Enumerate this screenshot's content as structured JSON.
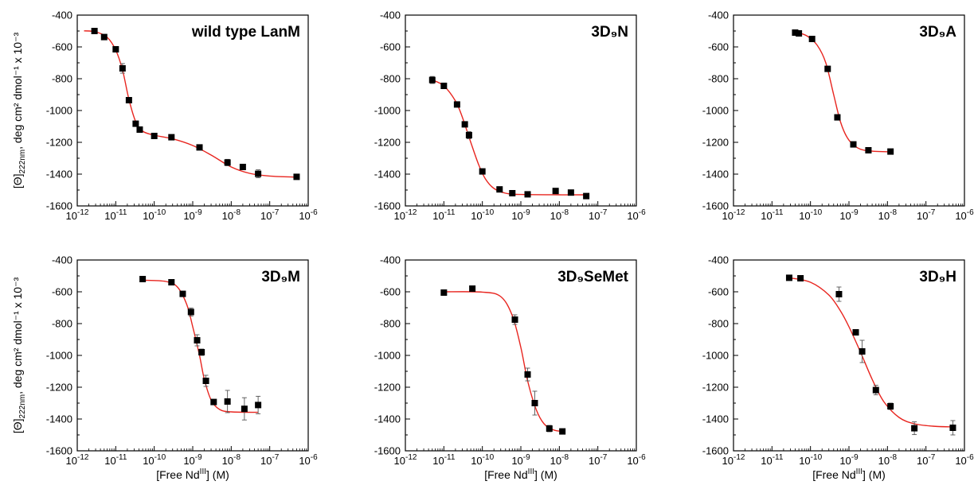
{
  "figure": {
    "ylabel_main": "[Θ]",
    "ylabel_sub": "222nm",
    "ylabel_rest": ", deg cm² dmol⁻¹ x 10⁻³",
    "xlabel_main": "[Free Nd",
    "xlabel_sup": "III",
    "xlabel_rest": "] (M)"
  },
  "chart_data": [
    {
      "type": "scatter",
      "title": "wild type LanM",
      "x_scale": "log",
      "xlim": [
        1e-12,
        1e-06
      ],
      "ylim": [
        -1600,
        -400
      ],
      "x_ticks": [
        "10⁻¹²",
        "10⁻¹¹",
        "10⁻¹⁰",
        "10⁻⁹",
        "10⁻⁸",
        "10⁻⁷",
        "10⁻⁶"
      ],
      "y_ticks": [
        -400,
        -600,
        -800,
        -1000,
        -1200,
        -1400,
        -1600
      ],
      "show_xlabel": false,
      "show_ylabel": true,
      "marker_color": "#000000",
      "fit_color": "#e8251f",
      "points": [
        {
          "x": 2.8e-12,
          "y": -500,
          "err": 8
        },
        {
          "x": 5e-12,
          "y": -538,
          "err": 8
        },
        {
          "x": 1e-11,
          "y": -615,
          "err": 15
        },
        {
          "x": 1.5e-11,
          "y": -735,
          "err": 30
        },
        {
          "x": 2.2e-11,
          "y": -935,
          "err": 10
        },
        {
          "x": 3.3e-11,
          "y": -1083,
          "err": 10
        },
        {
          "x": 4.2e-11,
          "y": -1120,
          "err": 12
        },
        {
          "x": 1e-10,
          "y": -1160,
          "err": 8
        },
        {
          "x": 2.8e-10,
          "y": -1168,
          "err": 8
        },
        {
          "x": 1.5e-09,
          "y": -1232,
          "err": 12
        },
        {
          "x": 8e-09,
          "y": -1327,
          "err": 20
        },
        {
          "x": 2e-08,
          "y": -1355,
          "err": 8
        },
        {
          "x": 5e-08,
          "y": -1398,
          "err": 25
        },
        {
          "x": 5e-07,
          "y": -1417,
          "err": 8
        }
      ],
      "fit": [
        {
          "x": 1.5e-12,
          "y": -499
        },
        {
          "x": 3e-12,
          "y": -505
        },
        {
          "x": 6e-12,
          "y": -540
        },
        {
          "x": 1e-11,
          "y": -620
        },
        {
          "x": 1.5e-11,
          "y": -745
        },
        {
          "x": 2.2e-11,
          "y": -930
        },
        {
          "x": 3.3e-11,
          "y": -1070
        },
        {
          "x": 5e-11,
          "y": -1130
        },
        {
          "x": 1e-10,
          "y": -1155
        },
        {
          "x": 3e-10,
          "y": -1178
        },
        {
          "x": 1e-09,
          "y": -1220
        },
        {
          "x": 3e-09,
          "y": -1280
        },
        {
          "x": 1e-08,
          "y": -1355
        },
        {
          "x": 3e-08,
          "y": -1395
        },
        {
          "x": 1e-07,
          "y": -1412
        },
        {
          "x": 5e-07,
          "y": -1419
        }
      ]
    },
    {
      "type": "scatter",
      "title": "3D₉N",
      "x_scale": "log",
      "xlim": [
        1e-12,
        1e-06
      ],
      "ylim": [
        -1600,
        -400
      ],
      "x_ticks": [
        "10⁻¹²",
        "10⁻¹¹",
        "10⁻¹⁰",
        "10⁻⁹",
        "10⁻⁸",
        "10⁻⁷",
        "10⁻⁶"
      ],
      "y_ticks": [
        -400,
        -600,
        -800,
        -1000,
        -1200,
        -1400,
        -1600
      ],
      "show_xlabel": false,
      "show_ylabel": false,
      "marker_color": "#000000",
      "fit_color": "#e8251f",
      "points": [
        {
          "x": 5e-12,
          "y": -808,
          "err": 22
        },
        {
          "x": 1e-11,
          "y": -845,
          "err": 18
        },
        {
          "x": 2.2e-11,
          "y": -962,
          "err": 10
        },
        {
          "x": 3.5e-11,
          "y": -1087,
          "err": 15
        },
        {
          "x": 4.5e-11,
          "y": -1155,
          "err": 22
        },
        {
          "x": 1e-10,
          "y": -1383,
          "err": 10
        },
        {
          "x": 2.8e-10,
          "y": -1496,
          "err": 8
        },
        {
          "x": 6e-10,
          "y": -1520,
          "err": 8
        },
        {
          "x": 1.5e-09,
          "y": -1527,
          "err": 8
        },
        {
          "x": 8e-09,
          "y": -1506,
          "err": 12
        },
        {
          "x": 2e-08,
          "y": -1516,
          "err": 12
        },
        {
          "x": 5e-08,
          "y": -1538,
          "err": 8
        }
      ],
      "fit": [
        {
          "x": 5e-12,
          "y": -808
        },
        {
          "x": 1e-11,
          "y": -845
        },
        {
          "x": 2e-11,
          "y": -940
        },
        {
          "x": 3e-11,
          "y": -1040
        },
        {
          "x": 5e-11,
          "y": -1200
        },
        {
          "x": 8e-11,
          "y": -1340
        },
        {
          "x": 1.2e-10,
          "y": -1430
        },
        {
          "x": 2e-10,
          "y": -1490
        },
        {
          "x": 4e-10,
          "y": -1520
        },
        {
          "x": 1e-09,
          "y": -1528
        },
        {
          "x": 1e-08,
          "y": -1530
        },
        {
          "x": 5e-08,
          "y": -1530
        }
      ]
    },
    {
      "type": "scatter",
      "title": "3D₉A",
      "x_scale": "log",
      "xlim": [
        1e-12,
        1e-06
      ],
      "ylim": [
        -1600,
        -400
      ],
      "x_ticks": [
        "10⁻¹²",
        "10⁻¹¹",
        "10⁻¹⁰",
        "10⁻⁹",
        "10⁻⁸",
        "10⁻⁷",
        "10⁻⁶"
      ],
      "y_ticks": [
        -400,
        -600,
        -800,
        -1000,
        -1200,
        -1400,
        -1600
      ],
      "show_xlabel": false,
      "show_ylabel": false,
      "marker_color": "#000000",
      "fit_color": "#e8251f",
      "points": [
        {
          "x": 4e-11,
          "y": -510,
          "err": 8
        },
        {
          "x": 5e-11,
          "y": -515,
          "err": 8
        },
        {
          "x": 1.1e-10,
          "y": -550,
          "err": 8
        },
        {
          "x": 2.8e-10,
          "y": -738,
          "err": 15
        },
        {
          "x": 5e-10,
          "y": -1043,
          "err": 10
        },
        {
          "x": 1.3e-09,
          "y": -1213,
          "err": 10
        },
        {
          "x": 3.2e-09,
          "y": -1250,
          "err": 12
        },
        {
          "x": 1.2e-08,
          "y": -1258,
          "err": 15
        }
      ],
      "fit": [
        {
          "x": 4e-11,
          "y": -505
        },
        {
          "x": 8e-11,
          "y": -530
        },
        {
          "x": 1.5e-10,
          "y": -590
        },
        {
          "x": 2.5e-10,
          "y": -700
        },
        {
          "x": 4e-10,
          "y": -900
        },
        {
          "x": 6e-10,
          "y": -1070
        },
        {
          "x": 9e-10,
          "y": -1170
        },
        {
          "x": 1.5e-09,
          "y": -1228
        },
        {
          "x": 3e-09,
          "y": -1253
        },
        {
          "x": 1.2e-08,
          "y": -1260
        }
      ]
    },
    {
      "type": "scatter",
      "title": "3D₉M",
      "x_scale": "log",
      "xlim": [
        1e-12,
        1e-06
      ],
      "ylim": [
        -1600,
        -400
      ],
      "x_ticks": [
        "10⁻¹²",
        "10⁻¹¹",
        "10⁻¹⁰",
        "10⁻⁹",
        "10⁻⁸",
        "10⁻⁷",
        "10⁻⁶"
      ],
      "y_ticks": [
        -400,
        -600,
        -800,
        -1000,
        -1200,
        -1400,
        -1600
      ],
      "show_xlabel": true,
      "show_ylabel": true,
      "marker_color": "#000000",
      "fit_color": "#e8251f",
      "points": [
        {
          "x": 5e-11,
          "y": -520,
          "err": 8
        },
        {
          "x": 2.8e-10,
          "y": -540,
          "err": 8
        },
        {
          "x": 5.5e-10,
          "y": -613,
          "err": 10
        },
        {
          "x": 9e-10,
          "y": -727,
          "err": 25
        },
        {
          "x": 1.3e-09,
          "y": -905,
          "err": 35
        },
        {
          "x": 1.7e-09,
          "y": -980,
          "err": 20
        },
        {
          "x": 2.2e-09,
          "y": -1160,
          "err": 35
        },
        {
          "x": 3.5e-09,
          "y": -1293,
          "err": 12
        },
        {
          "x": 8e-09,
          "y": -1290,
          "err": 70
        },
        {
          "x": 2.2e-08,
          "y": -1336,
          "err": 70
        },
        {
          "x": 5e-08,
          "y": -1312,
          "err": 55
        }
      ],
      "fit": [
        {
          "x": 5e-11,
          "y": -527
        },
        {
          "x": 2e-10,
          "y": -535
        },
        {
          "x": 4e-10,
          "y": -570
        },
        {
          "x": 7e-10,
          "y": -680
        },
        {
          "x": 1e-09,
          "y": -820
        },
        {
          "x": 1.5e-09,
          "y": -1000
        },
        {
          "x": 2e-09,
          "y": -1150
        },
        {
          "x": 3e-09,
          "y": -1280
        },
        {
          "x": 5e-09,
          "y": -1340
        },
        {
          "x": 1e-08,
          "y": -1355
        },
        {
          "x": 5e-08,
          "y": -1358
        }
      ]
    },
    {
      "type": "scatter",
      "title": "3D₉SeMet",
      "x_scale": "log",
      "xlim": [
        1e-12,
        1e-06
      ],
      "ylim": [
        -1600,
        -400
      ],
      "x_ticks": [
        "10⁻¹²",
        "10⁻¹¹",
        "10⁻¹⁰",
        "10⁻⁹",
        "10⁻⁸",
        "10⁻⁷",
        "10⁻⁶"
      ],
      "y_ticks": [
        -400,
        -600,
        -800,
        -1000,
        -1200,
        -1400,
        -1600
      ],
      "show_xlabel": true,
      "show_ylabel": false,
      "marker_color": "#000000",
      "fit_color": "#e8251f",
      "points": [
        {
          "x": 1e-11,
          "y": -605,
          "err": 8
        },
        {
          "x": 5.5e-11,
          "y": -580,
          "err": 15
        },
        {
          "x": 7e-10,
          "y": -775,
          "err": 30
        },
        {
          "x": 1.5e-09,
          "y": -1120,
          "err": 40
        },
        {
          "x": 2.3e-09,
          "y": -1300,
          "err": 75
        },
        {
          "x": 5.5e-09,
          "y": -1460,
          "err": 20
        },
        {
          "x": 1.2e-08,
          "y": -1478,
          "err": 12
        }
      ],
      "fit": [
        {
          "x": 1e-11,
          "y": -600
        },
        {
          "x": 1e-10,
          "y": -602
        },
        {
          "x": 3e-10,
          "y": -630
        },
        {
          "x": 6e-10,
          "y": -750
        },
        {
          "x": 1e-09,
          "y": -950
        },
        {
          "x": 1.5e-09,
          "y": -1160
        },
        {
          "x": 2.5e-09,
          "y": -1340
        },
        {
          "x": 4e-09,
          "y": -1430
        },
        {
          "x": 7e-09,
          "y": -1468
        },
        {
          "x": 1.2e-08,
          "y": -1478
        }
      ]
    },
    {
      "type": "scatter",
      "title": "3D₉H",
      "x_scale": "log",
      "xlim": [
        1e-12,
        1e-06
      ],
      "ylim": [
        -1600,
        -400
      ],
      "x_ticks": [
        "10⁻¹²",
        "10⁻¹¹",
        "10⁻¹⁰",
        "10⁻⁹",
        "10⁻⁸",
        "10⁻⁷",
        "10⁻⁶"
      ],
      "y_ticks": [
        -400,
        -600,
        -800,
        -1000,
        -1200,
        -1400,
        -1600
      ],
      "show_xlabel": true,
      "show_ylabel": false,
      "marker_color": "#000000",
      "fit_color": "#e8251f",
      "points": [
        {
          "x": 2.8e-11,
          "y": -512,
          "err": 8
        },
        {
          "x": 5.5e-11,
          "y": -515,
          "err": 10
        },
        {
          "x": 5.5e-10,
          "y": -615,
          "err": 45
        },
        {
          "x": 1.5e-09,
          "y": -855,
          "err": 15
        },
        {
          "x": 2.2e-09,
          "y": -975,
          "err": 70
        },
        {
          "x": 5e-09,
          "y": -1218,
          "err": 30
        },
        {
          "x": 1.2e-08,
          "y": -1320,
          "err": 20
        },
        {
          "x": 5e-08,
          "y": -1458,
          "err": 40
        },
        {
          "x": 5e-07,
          "y": -1455,
          "err": 45
        }
      ],
      "fit": [
        {
          "x": 2.8e-11,
          "y": -512
        },
        {
          "x": 1e-10,
          "y": -540
        },
        {
          "x": 3e-10,
          "y": -620
        },
        {
          "x": 6e-10,
          "y": -720
        },
        {
          "x": 1e-09,
          "y": -820
        },
        {
          "x": 2e-09,
          "y": -980
        },
        {
          "x": 4e-09,
          "y": -1150
        },
        {
          "x": 8e-09,
          "y": -1290
        },
        {
          "x": 2e-08,
          "y": -1390
        },
        {
          "x": 5e-08,
          "y": -1430
        },
        {
          "x": 1.5e-07,
          "y": -1445
        },
        {
          "x": 5e-07,
          "y": -1450
        }
      ]
    }
  ]
}
